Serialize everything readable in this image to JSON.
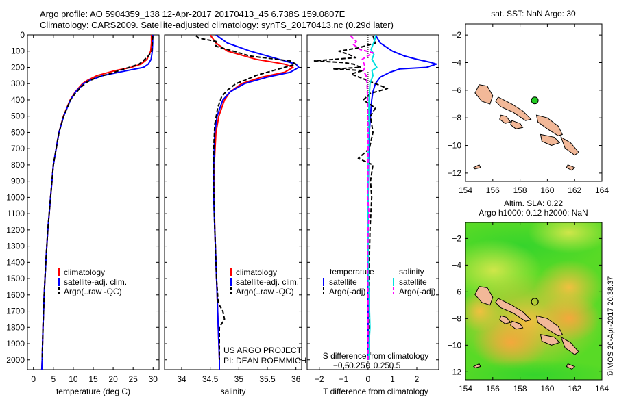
{
  "header": {
    "line1": "Argo profile: AO 5904359_138 12-Apr-2017 20170413_45 6.738S 159.0807E",
    "line2": "Climatology: CARS2009. Satellite-adjusted climatology: synTS_20170413.nc (0.29d later)"
  },
  "side_text": "©IMOS 20-Apr-2017 20:38:37",
  "colors": {
    "climatology": "#ff0000",
    "satellite": "#0000ff",
    "argo": "#000000",
    "sal_sat": "#00e0e0",
    "sal_argo": "#ff00ff",
    "land": "#f2b898",
    "float": "#22cc22"
  },
  "depth_axis": {
    "ticks": [
      0,
      100,
      200,
      300,
      400,
      500,
      600,
      700,
      800,
      900,
      1000,
      1100,
      1200,
      1300,
      1400,
      1500,
      1600,
      1700,
      1800,
      1900,
      2000
    ],
    "range": [
      0,
      2060
    ]
  },
  "chart_data": [
    {
      "type": "line",
      "xlabel": "temperature (deg C)",
      "x_ticks": [
        0,
        5,
        10,
        15,
        20,
        25,
        30
      ],
      "xlim": [
        -1.5,
        31.5
      ],
      "legend": [
        "climatology",
        "satellite-adj. clim.",
        "Argo(..raw -QC)"
      ],
      "series": [
        {
          "name": "climatology",
          "color": "#ff0000",
          "depth": [
            0,
            20,
            50,
            100,
            150,
            180,
            200,
            220,
            250,
            280,
            300,
            350,
            400,
            500,
            600,
            800,
            1000,
            1200,
            1400,
            1600,
            1800,
            2000,
            2060
          ],
          "values": [
            29.6,
            29.6,
            29.6,
            29.4,
            28.5,
            27.0,
            24.5,
            20.5,
            16.0,
            13.5,
            12.3,
            10.5,
            9.2,
            7.5,
            6.4,
            5.0,
            4.3,
            3.6,
            3.1,
            2.7,
            2.4,
            2.2,
            2.1
          ]
        },
        {
          "name": "satellite-adj. clim.",
          "color": "#0000ff",
          "depth": [
            0,
            20,
            50,
            100,
            150,
            180,
            200,
            220,
            250,
            280,
            300,
            350,
            400,
            500,
            600,
            800,
            1000,
            1200,
            1400,
            1600,
            1800,
            2000,
            2060
          ],
          "values": [
            29.9,
            29.9,
            29.9,
            29.8,
            29.5,
            28.8,
            27.6,
            23.5,
            17.5,
            14.0,
            12.6,
            10.6,
            9.3,
            7.6,
            6.4,
            5.0,
            4.3,
            3.6,
            3.1,
            2.7,
            2.4,
            2.2,
            2.1
          ]
        },
        {
          "name": "Argo(..raw -QC)",
          "color": "#000000",
          "dashed": true,
          "depth": [
            5,
            20,
            50,
            100,
            130,
            160,
            180,
            200,
            220,
            240,
            260,
            290,
            320,
            360,
            400,
            500,
            600,
            800,
            1000,
            1200,
            1400,
            1600,
            1800,
            2000
          ],
          "values": [
            29.9,
            29.9,
            29.8,
            29.7,
            28.8,
            27.5,
            26.5,
            24.0,
            21.5,
            19.0,
            16.0,
            13.5,
            12.0,
            10.5,
            9.3,
            7.6,
            6.4,
            5.0,
            4.3,
            3.6,
            3.1,
            2.7,
            2.4,
            2.2
          ]
        }
      ]
    },
    {
      "type": "line",
      "xlabel": "salinity",
      "x_ticks": [
        34,
        34.5,
        35,
        35.5,
        36
      ],
      "xlim": [
        33.7,
        36.1
      ],
      "legend": [
        "climatology",
        "satellite-adj. clim.",
        "Argo(..raw -QC)"
      ],
      "credit_line1": "US ARGO PROJECT",
      "credit_line2": "PI: DEAN ROEMMICH",
      "series": [
        {
          "name": "climatology",
          "color": "#ff0000",
          "depth": [
            0,
            50,
            100,
            150,
            180,
            200,
            230,
            260,
            300,
            350,
            400,
            500,
            600,
            800,
            1000,
            1200,
            1400,
            1600,
            1800,
            2000,
            2060
          ],
          "values": [
            34.5,
            34.6,
            34.8,
            35.3,
            35.8,
            35.95,
            35.8,
            35.4,
            35.05,
            34.85,
            34.75,
            34.65,
            34.6,
            34.57,
            34.57,
            34.58,
            34.6,
            34.62,
            34.64,
            34.66,
            34.66
          ]
        },
        {
          "name": "satellite-adj. clim.",
          "color": "#0000ff",
          "depth": [
            0,
            50,
            100,
            150,
            180,
            200,
            230,
            260,
            300,
            350,
            400,
            500,
            600,
            800,
            1000,
            1200,
            1400,
            1600,
            1800,
            2000,
            2060
          ],
          "values": [
            34.6,
            34.8,
            35.2,
            35.7,
            36.0,
            36.05,
            35.9,
            35.5,
            35.1,
            34.85,
            34.72,
            34.62,
            34.58,
            34.56,
            34.56,
            34.58,
            34.6,
            34.62,
            34.64,
            34.66,
            34.66
          ]
        },
        {
          "name": "Argo(..raw -QC)",
          "color": "#000000",
          "dashed": true,
          "depth": [
            5,
            20,
            40,
            70,
            100,
            130,
            160,
            180,
            200,
            220,
            250,
            280,
            300,
            340,
            380,
            450,
            550,
            700,
            900,
            1100,
            1300,
            1500,
            1650,
            1700,
            1750,
            1800,
            1900,
            2000
          ],
          "values": [
            34.25,
            34.3,
            34.6,
            34.6,
            34.9,
            35.2,
            35.9,
            36.0,
            35.8,
            35.6,
            35.3,
            35.1,
            34.95,
            34.8,
            34.7,
            34.63,
            34.58,
            34.56,
            34.56,
            34.57,
            34.59,
            34.61,
            34.64,
            34.72,
            34.75,
            34.66,
            34.66,
            34.66
          ]
        }
      ]
    },
    {
      "type": "line",
      "top_label": "T difference from climatology",
      "bottom_label": "S difference from climatology",
      "x_ticks_T": [
        -2,
        -1,
        0,
        1,
        2
      ],
      "x_ticks_S": [
        -0.5,
        -0.25,
        0,
        0.25,
        0.5
      ],
      "xlim": [
        -2.5,
        2.9
      ],
      "legend_temp_title": "temperature",
      "legend_sal_title": "salinity",
      "legend": [
        "satellite",
        "Argo(-adj)",
        "satellite",
        "Argo(-adj)"
      ],
      "series": [
        {
          "name": "satellite",
          "color": "#0000ff",
          "depth": [
            0,
            50,
            100,
            130,
            150,
            170,
            180,
            200,
            210,
            230,
            260,
            300,
            350,
            400,
            500,
            600,
            800,
            1000,
            1500,
            2000
          ],
          "values": [
            0.3,
            0.5,
            1.0,
            1.5,
            2.0,
            2.6,
            2.8,
            2.4,
            1.3,
            0.9,
            0.5,
            0.3,
            0.2,
            0.15,
            0.1,
            0.05,
            0.02,
            0.0,
            0.0,
            0.0
          ]
        },
        {
          "name": "Argo(-adj)",
          "color": "#000000",
          "dashed": true,
          "depth": [
            5,
            50,
            80,
            100,
            120,
            140,
            160,
            170,
            180,
            200,
            210,
            220,
            240,
            270,
            300,
            330,
            360,
            400,
            450,
            500,
            600,
            700,
            760,
            800,
            900,
            1000,
            1200,
            1400,
            1600,
            1800,
            2000
          ],
          "values": [
            0.2,
            0.3,
            -0.4,
            -1.2,
            -0.8,
            -0.5,
            -2.2,
            -1.0,
            -0.6,
            -0.3,
            -1.4,
            -0.2,
            -0.7,
            -0.2,
            0.3,
            0.8,
            0.1,
            -0.2,
            0.3,
            0.1,
            0.2,
            0.05,
            -0.4,
            0.2,
            0.1,
            0.15,
            0.08,
            0.05,
            0.05,
            0.03,
            0.02
          ]
        },
        {
          "name": "satellite",
          "color": "#00e0e0",
          "depth": [
            0,
            30,
            60,
            90,
            120,
            150,
            180,
            200,
            220,
            250,
            300,
            400,
            600,
            800,
            1000,
            1200,
            1500,
            1700,
            1800,
            1900,
            2000
          ],
          "values": [
            0.8,
            0.7,
            0.5,
            0.3,
            0.6,
            0.4,
            0.7,
            0.9,
            0.4,
            0.5,
            0.2,
            0.1,
            0.05,
            0.02,
            0.0,
            0.0,
            0.03,
            0.15,
            0.2,
            0.1,
            0.05
          ]
        },
        {
          "name": "Argo(-adj)",
          "color": "#ff00ff",
          "dashed": true,
          "depth": [
            5,
            40,
            60,
            90,
            110,
            150,
            180,
            200,
            220,
            250,
            300,
            400,
            600,
            800,
            1000,
            1100,
            1200,
            1400,
            1600,
            1800,
            2000
          ],
          "values": [
            -1.8,
            -1.2,
            -1.5,
            -0.8,
            0.5,
            -0.6,
            -0.4,
            -0.3,
            -0.5,
            -0.2,
            -0.1,
            -0.05,
            0.0,
            0.0,
            -0.05,
            0.1,
            0.0,
            -0.05,
            0.0,
            0.0,
            0.0
          ]
        }
      ]
    },
    {
      "type": "scatter",
      "title": "sat. SST: NaN Argo: 30",
      "x_ticks": [
        154,
        156,
        158,
        160,
        162,
        164
      ],
      "y_ticks": [
        -2,
        -4,
        -6,
        -8,
        -10,
        -12
      ],
      "xlim": [
        154,
        164
      ],
      "ylim": [
        -12.6,
        -1.2
      ],
      "point": {
        "lon": 159.08,
        "lat": -6.74
      }
    },
    {
      "type": "heatmap",
      "title_line1": "Altim. SLA: 0.22",
      "title_line2": "Argo h1000: 0.12 h2000: NaN",
      "x_ticks": [
        154,
        156,
        158,
        160,
        162,
        164
      ],
      "y_ticks": [
        -2,
        -4,
        -6,
        -8,
        -10,
        -12
      ],
      "xlim": [
        154,
        164
      ],
      "ylim": [
        -12.6,
        -0.8
      ],
      "point": {
        "lon": 159.08,
        "lat": -6.74
      }
    }
  ]
}
